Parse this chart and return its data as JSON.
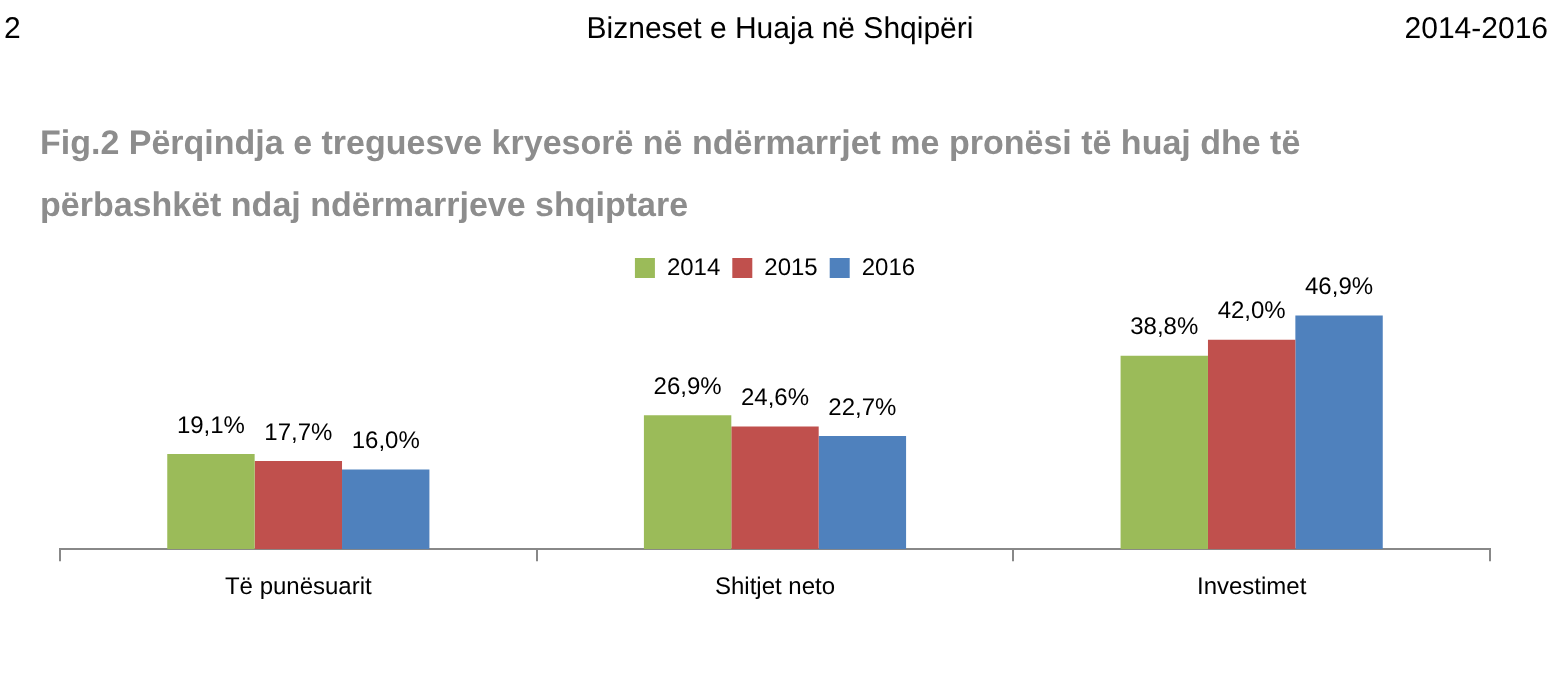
{
  "chart_data": {
    "type": "bar",
    "title": "Fig.2 Përqindja e treguesve kryesorë në ndërmarrjet me pronësi të huaj dhe të përbashkët ndaj ndërmarrjeve shqiptare",
    "annotations": [
      "2",
      "Bizneset e Huaja në Shqipëri",
      "2014-2016"
    ],
    "categories": [
      "Të punësuarit",
      "Shitjet neto",
      "Investimet"
    ],
    "series": [
      {
        "name": "2014",
        "color": "#9bbb59",
        "values": [
          19.1,
          26.9,
          38.8
        ],
        "value_labels": [
          "19,1%",
          "26,9%",
          "38,8%"
        ]
      },
      {
        "name": "2015",
        "color": "#c0504d",
        "values": [
          17.7,
          24.6,
          42.0
        ],
        "value_labels": [
          "17,7%",
          "24,6%",
          "42,0%"
        ]
      },
      {
        "name": "2016",
        "color": "#4f81bd",
        "values": [
          16.0,
          22.7,
          46.9
        ],
        "value_labels": [
          "16,0%",
          "22,7%",
          "46,9%"
        ]
      }
    ],
    "grid": false,
    "legend": "top"
  }
}
